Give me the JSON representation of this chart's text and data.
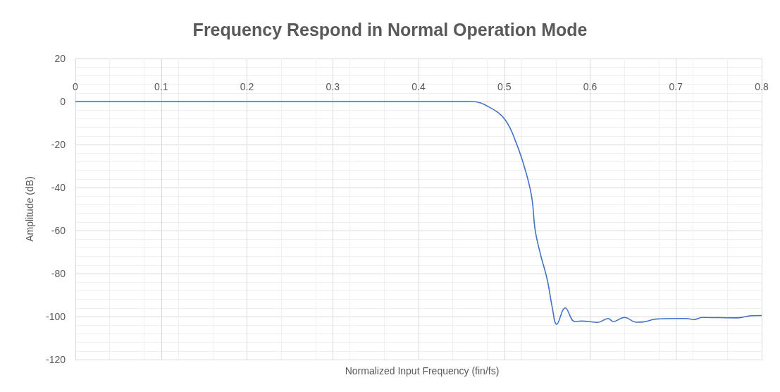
{
  "chart_data": {
    "type": "line",
    "title": "Frequency Respond in Normal Operation Mode",
    "xlabel": "Normalized Input Frequency (fin/fs)",
    "ylabel": "Amplitude (dB)",
    "x": [
      0,
      0.1,
      0.2,
      0.3,
      0.4,
      0.462,
      0.482,
      0.501,
      0.514,
      0.525,
      0.532,
      0.536,
      0.542,
      0.55,
      0.556,
      0.561,
      0.571,
      0.582,
      0.59,
      0.609,
      0.621,
      0.627,
      0.64,
      0.654,
      0.662,
      0.676,
      0.7,
      0.712,
      0.721,
      0.731,
      0.772,
      0.788,
      0.8
    ],
    "series": [
      {
        "color": "#4472c4",
        "values": [
          0,
          0,
          0,
          0,
          0,
          0,
          -2.5,
          -8.5,
          -19.4,
          -32.6,
          -44.6,
          -59.9,
          -70.8,
          -82.8,
          -96,
          -103.6,
          -96,
          -102.3,
          -102.1,
          -102.7,
          -100.9,
          -102.3,
          -100.4,
          -102.6,
          -102.5,
          -101.2,
          -100.9,
          -100.9,
          -101.4,
          -100.4,
          -100.6,
          -99.6,
          -99.5
        ]
      }
    ],
    "xlim": [
      0,
      0.8
    ],
    "xticks": [
      0,
      0.1,
      0.2,
      0.3,
      0.4,
      0.5,
      0.6,
      0.7,
      0.8
    ],
    "ylim": [
      -120,
      20
    ],
    "yticks": [
      -120,
      -100,
      -80,
      -60,
      -40,
      -20,
      0,
      20
    ],
    "grid": true,
    "marker": "none",
    "line_style": "solid"
  }
}
